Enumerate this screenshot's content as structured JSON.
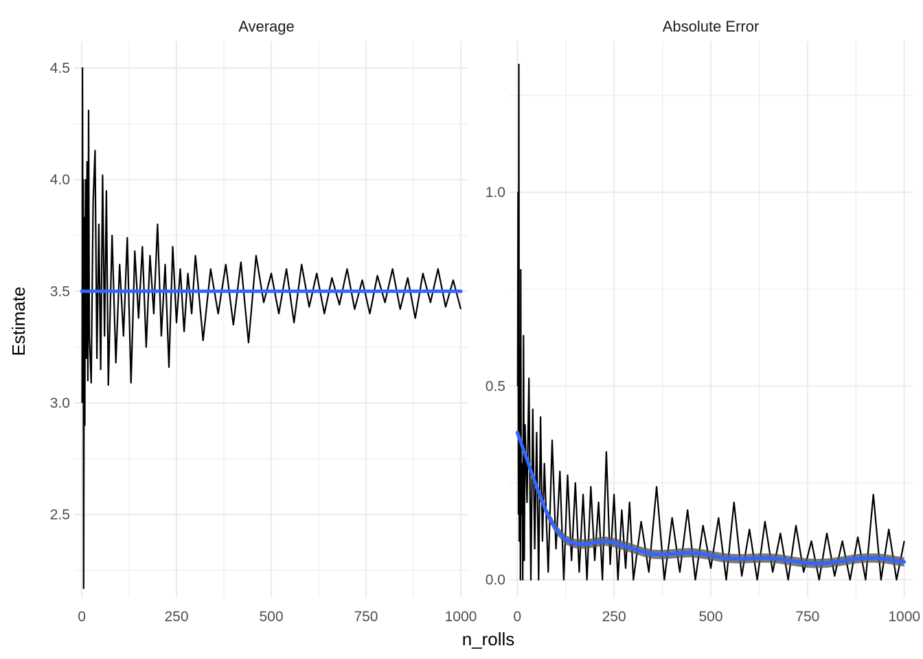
{
  "colors": {
    "raw": "#000000",
    "smooth": "#3366ff",
    "band": "#595959",
    "grid": "#ebebeb"
  },
  "chart_data": [
    {
      "type": "line",
      "title": "Average",
      "xlabel": "n_rolls",
      "ylabel": "Estimate",
      "xlim": [
        -20,
        1020
      ],
      "ylim": [
        2.13,
        4.62
      ],
      "x_ticks": [
        0,
        250,
        500,
        750,
        1000
      ],
      "x_tick_labels": [
        "0",
        "250",
        "500",
        "750",
        "1000"
      ],
      "y_ticks": [
        2.5,
        3.0,
        3.5,
        4.0,
        4.5
      ],
      "y_tick_labels": [
        "2.5",
        "3.0",
        "3.5",
        "4.0",
        "4.5"
      ],
      "grid": true,
      "series": [
        {
          "kind": "raw",
          "x": [
            1,
            2,
            3,
            4,
            5,
            6,
            7,
            8,
            9,
            10,
            12,
            14,
            16,
            18,
            20,
            25,
            30,
            35,
            40,
            45,
            50,
            55,
            60,
            65,
            70,
            80,
            90,
            100,
            110,
            120,
            130,
            140,
            150,
            160,
            170,
            180,
            190,
            200,
            210,
            220,
            230,
            240,
            250,
            260,
            270,
            280,
            290,
            300,
            320,
            340,
            360,
            380,
            400,
            420,
            440,
            460,
            480,
            500,
            520,
            540,
            560,
            580,
            600,
            620,
            640,
            660,
            680,
            700,
            720,
            740,
            760,
            780,
            800,
            820,
            840,
            860,
            880,
            900,
            920,
            940,
            960,
            980,
            1000
          ],
          "y": [
            3.0,
            4.5,
            3.5,
            4.0,
            2.17,
            3.0,
            3.83,
            2.9,
            3.67,
            4.0,
            3.2,
            4.08,
            3.1,
            4.31,
            3.3,
            3.09,
            3.9,
            4.13,
            3.2,
            3.8,
            3.15,
            4.02,
            3.3,
            3.95,
            3.08,
            3.75,
            3.18,
            3.62,
            3.3,
            3.74,
            3.09,
            3.68,
            3.38,
            3.7,
            3.25,
            3.66,
            3.4,
            3.8,
            3.3,
            3.62,
            3.16,
            3.7,
            3.36,
            3.6,
            3.32,
            3.58,
            3.4,
            3.66,
            3.28,
            3.6,
            3.4,
            3.62,
            3.35,
            3.63,
            3.27,
            3.66,
            3.45,
            3.58,
            3.4,
            3.6,
            3.36,
            3.62,
            3.43,
            3.58,
            3.4,
            3.56,
            3.44,
            3.6,
            3.42,
            3.55,
            3.4,
            3.57,
            3.45,
            3.6,
            3.42,
            3.56,
            3.38,
            3.58,
            3.45,
            3.6,
            3.43,
            3.55,
            3.42
          ]
        },
        {
          "kind": "smooth",
          "x": [
            0,
            1000
          ],
          "y": [
            3.5,
            3.5
          ]
        }
      ]
    },
    {
      "type": "line",
      "title": "Absolute Error",
      "xlabel": "n_rolls",
      "ylabel": "Estimate",
      "xlim": [
        -20,
        1020
      ],
      "ylim": [
        -0.045,
        1.39
      ],
      "x_ticks": [
        0,
        250,
        500,
        750,
        1000
      ],
      "x_tick_labels": [
        "0",
        "250",
        "500",
        "750",
        "1000"
      ],
      "y_ticks": [
        0.0,
        0.5,
        1.0
      ],
      "y_tick_labels": [
        "0.0",
        "0.5",
        "1.0"
      ],
      "grid": true,
      "series": [
        {
          "kind": "raw",
          "x": [
            1,
            2,
            3,
            4,
            5,
            6,
            7,
            8,
            9,
            10,
            12,
            14,
            16,
            18,
            20,
            25,
            30,
            35,
            40,
            45,
            50,
            55,
            60,
            65,
            70,
            80,
            90,
            100,
            110,
            120,
            130,
            140,
            150,
            160,
            170,
            180,
            190,
            200,
            210,
            220,
            230,
            240,
            250,
            260,
            270,
            280,
            290,
            300,
            320,
            340,
            360,
            380,
            400,
            420,
            440,
            460,
            480,
            500,
            520,
            540,
            560,
            580,
            600,
            620,
            640,
            660,
            680,
            700,
            720,
            740,
            760,
            780,
            800,
            820,
            840,
            860,
            880,
            900,
            920,
            940,
            960,
            980,
            1000
          ],
          "y": [
            0.5,
            1.0,
            0.17,
            1.33,
            0.1,
            0.5,
            0.6,
            0.0,
            0.8,
            0.17,
            0.3,
            0.0,
            0.63,
            0.05,
            0.4,
            0.2,
            0.52,
            0.0,
            0.44,
            0.08,
            0.38,
            0.0,
            0.42,
            0.1,
            0.3,
            0.02,
            0.36,
            0.08,
            0.28,
            0.0,
            0.27,
            0.05,
            0.25,
            0.02,
            0.22,
            0.0,
            0.24,
            0.05,
            0.2,
            0.0,
            0.33,
            0.04,
            0.22,
            0.0,
            0.18,
            0.03,
            0.2,
            0.0,
            0.15,
            0.02,
            0.24,
            0.0,
            0.16,
            0.02,
            0.18,
            0.0,
            0.14,
            0.03,
            0.16,
            0.0,
            0.2,
            0.01,
            0.13,
            0.0,
            0.15,
            0.02,
            0.12,
            0.0,
            0.14,
            0.02,
            0.1,
            0.0,
            0.12,
            0.01,
            0.1,
            0.0,
            0.11,
            0.0,
            0.22,
            0.0,
            0.13,
            0.0,
            0.1
          ]
        },
        {
          "kind": "smooth",
          "x": [
            0,
            25,
            50,
            75,
            100,
            125,
            150,
            175,
            200,
            225,
            250,
            275,
            300,
            325,
            350,
            375,
            400,
            425,
            450,
            475,
            500,
            525,
            550,
            575,
            600,
            625,
            650,
            675,
            700,
            725,
            750,
            775,
            800,
            825,
            850,
            875,
            900,
            925,
            950,
            975,
            1000
          ],
          "y": [
            0.38,
            0.31,
            0.24,
            0.175,
            0.13,
            0.103,
            0.093,
            0.092,
            0.096,
            0.1,
            0.096,
            0.088,
            0.08,
            0.072,
            0.066,
            0.065,
            0.067,
            0.069,
            0.07,
            0.067,
            0.063,
            0.058,
            0.055,
            0.054,
            0.055,
            0.056,
            0.056,
            0.054,
            0.05,
            0.046,
            0.043,
            0.042,
            0.043,
            0.046,
            0.05,
            0.054,
            0.056,
            0.056,
            0.054,
            0.05,
            0.046
          ]
        }
      ]
    }
  ]
}
